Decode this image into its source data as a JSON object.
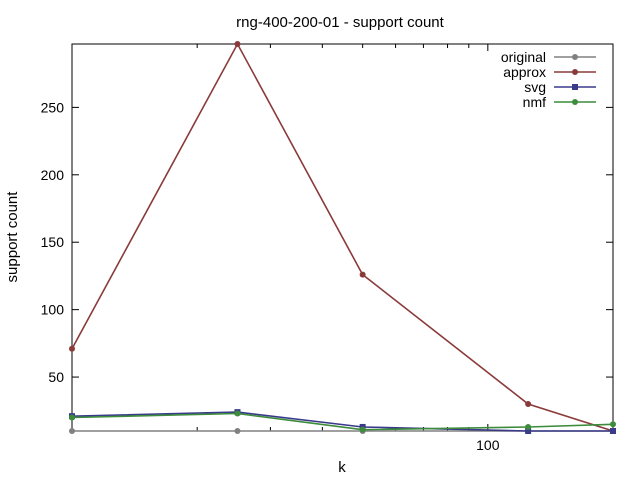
{
  "chart_data": {
    "type": "line",
    "title": "rng-400-200-01 - support count",
    "xlabel": "k",
    "ylabel": "support count",
    "xscale": "log",
    "xlim": [
      10,
      200
    ],
    "ylim": [
      10,
      297
    ],
    "x_ticks": [
      {
        "value": 100,
        "label": "100"
      }
    ],
    "y_ticks": [
      {
        "value": 50,
        "label": "50"
      },
      {
        "value": 100,
        "label": "100"
      },
      {
        "value": 150,
        "label": "150"
      },
      {
        "value": 200,
        "label": "200"
      },
      {
        "value": 250,
        "label": "250"
      }
    ],
    "x": [
      10,
      25,
      50,
      125,
      200
    ],
    "series": [
      {
        "name": "original",
        "color": "#808080",
        "marker": "circle",
        "values": [
          10,
          10,
          10,
          10,
          10
        ]
      },
      {
        "name": "approx",
        "color": "#8b3a3a",
        "marker": "circle",
        "values": [
          71,
          297,
          126,
          30,
          10
        ]
      },
      {
        "name": "svg",
        "color": "#3a3a8b",
        "marker": "square",
        "values": [
          21,
          24,
          13,
          10,
          10
        ]
      },
      {
        "name": "nmf",
        "color": "#3c8c3c",
        "marker": "circle",
        "values": [
          20,
          23,
          11,
          13,
          15
        ]
      }
    ],
    "grid": false,
    "legend_position": "top-right"
  }
}
